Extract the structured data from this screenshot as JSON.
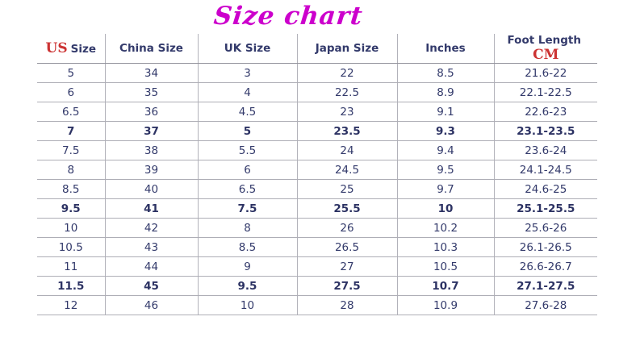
{
  "title": "Size chart",
  "colors": {
    "title_magenta": "#cc00cc",
    "accent_red": "#cc3333",
    "text_navy": "#333a6b",
    "grid_gray": "#aeaeb6"
  },
  "table": {
    "columns": [
      {
        "accent_prefix": "US",
        "label": "Size"
      },
      {
        "label": "China Size"
      },
      {
        "label": "UK Size"
      },
      {
        "label": "Japan Size"
      },
      {
        "label": "Inches"
      },
      {
        "label": "Foot Length",
        "accent_suffix": "CM"
      }
    ],
    "rows": [
      {
        "cells": [
          "5",
          "34",
          "3",
          "22",
          "8.5",
          "21.6-22"
        ],
        "bold": false
      },
      {
        "cells": [
          "6",
          "35",
          "4",
          "22.5",
          "8.9",
          "22.1-22.5"
        ],
        "bold": false
      },
      {
        "cells": [
          "6.5",
          "36",
          "4.5",
          "23",
          "9.1",
          "22.6-23"
        ],
        "bold": false
      },
      {
        "cells": [
          "7",
          "37",
          "5",
          "23.5",
          "9.3",
          "23.1-23.5"
        ],
        "bold": true
      },
      {
        "cells": [
          "7.5",
          "38",
          "5.5",
          "24",
          "9.4",
          "23.6-24"
        ],
        "bold": false
      },
      {
        "cells": [
          "8",
          "39",
          "6",
          "24.5",
          "9.5",
          "24.1-24.5"
        ],
        "bold": false
      },
      {
        "cells": [
          "8.5",
          "40",
          "6.5",
          "25",
          "9.7",
          "24.6-25"
        ],
        "bold": false
      },
      {
        "cells": [
          "9.5",
          "41",
          "7.5",
          "25.5",
          "10",
          "25.1-25.5"
        ],
        "bold": true
      },
      {
        "cells": [
          "10",
          "42",
          "8",
          "26",
          "10.2",
          "25.6-26"
        ],
        "bold": false
      },
      {
        "cells": [
          "10.5",
          "43",
          "8.5",
          "26.5",
          "10.3",
          "26.1-26.5"
        ],
        "bold": false
      },
      {
        "cells": [
          "11",
          "44",
          "9",
          "27",
          "10.5",
          "26.6-26.7"
        ],
        "bold": false
      },
      {
        "cells": [
          "11.5",
          "45",
          "9.5",
          "27.5",
          "10.7",
          "27.1-27.5"
        ],
        "bold": true
      },
      {
        "cells": [
          "12",
          "46",
          "10",
          "28",
          "10.9",
          "27.6-28"
        ],
        "bold": false
      }
    ]
  }
}
